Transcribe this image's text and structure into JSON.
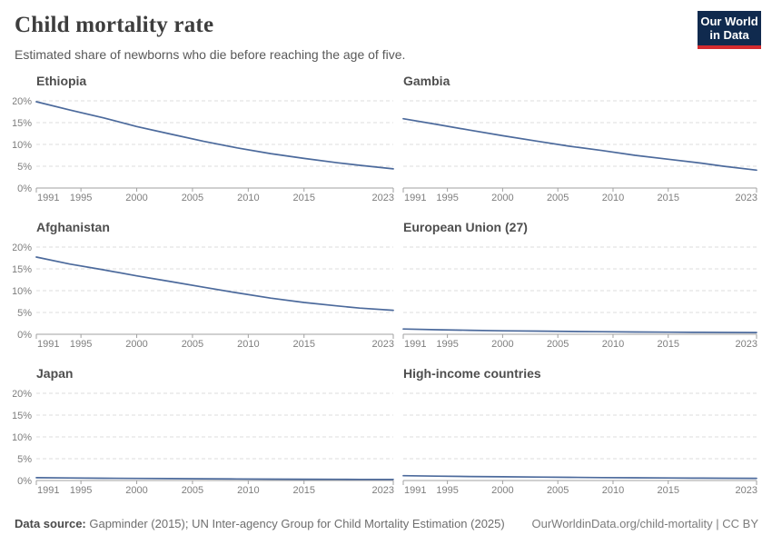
{
  "header": {
    "title": "Child mortality rate",
    "subtitle": "Estimated share of newborns who die before reaching the age of five."
  },
  "logo": {
    "line1": "Our World",
    "line2": "in Data"
  },
  "footer": {
    "source_label": "Data source:",
    "source_text": " Gapminder (2015); UN Inter-agency Group for Child Mortality Estimation (2025)",
    "credit": "OurWorldinData.org/child-mortality | CC BY"
  },
  "colors": {
    "line": "#4C6A9C",
    "logo_bg": "#102a4e",
    "logo_red": "#d42b2f",
    "grid": "#dcdcdc",
    "axis": "#a1a1a1",
    "tick_label": "#7e7e7e"
  },
  "chart_data": [
    {
      "type": "line",
      "title": "Ethiopia",
      "x": [
        1991,
        1994,
        1997,
        2000,
        2003,
        2006,
        2009,
        2012,
        2015,
        2018,
        2020,
        2023
      ],
      "values": [
        19.8,
        17.9,
        16.1,
        14.1,
        12.4,
        10.7,
        9.2,
        7.9,
        6.8,
        5.8,
        5.2,
        4.4
      ],
      "xlim": [
        1991,
        2023
      ],
      "ylim": [
        0,
        20
      ],
      "xticks": [
        1991,
        1995,
        2000,
        2005,
        2010,
        2015,
        2023
      ],
      "yticks": [
        0,
        5,
        10,
        15,
        20
      ],
      "ytick_labels": [
        "0%",
        "5%",
        "10%",
        "15%",
        "20%"
      ],
      "show_y_labels": true,
      "grid": true,
      "ylabel": "",
      "xlabel": ""
    },
    {
      "type": "line",
      "title": "Gambia",
      "x": [
        1991,
        1994,
        1997,
        2000,
        2003,
        2006,
        2009,
        2012,
        2015,
        2018,
        2020,
        2023
      ],
      "values": [
        15.9,
        14.6,
        13.3,
        12.0,
        10.8,
        9.6,
        8.6,
        7.5,
        6.6,
        5.7,
        5.0,
        4.1
      ],
      "xlim": [
        1991,
        2023
      ],
      "ylim": [
        0,
        20
      ],
      "xticks": [
        1991,
        1995,
        2000,
        2005,
        2010,
        2015,
        2023
      ],
      "yticks": [
        0,
        5,
        10,
        15,
        20
      ],
      "ytick_labels": [
        "0%",
        "5%",
        "10%",
        "15%",
        "20%"
      ],
      "show_y_labels": false,
      "grid": true,
      "ylabel": "",
      "xlabel": ""
    },
    {
      "type": "line",
      "title": "Afghanistan",
      "x": [
        1991,
        1994,
        1997,
        2000,
        2003,
        2006,
        2009,
        2012,
        2015,
        2018,
        2020,
        2023
      ],
      "values": [
        17.7,
        16.1,
        14.8,
        13.4,
        12.1,
        10.8,
        9.5,
        8.3,
        7.3,
        6.5,
        6.0,
        5.5
      ],
      "xlim": [
        1991,
        2023
      ],
      "ylim": [
        0,
        20
      ],
      "xticks": [
        1991,
        1995,
        2000,
        2005,
        2010,
        2015,
        2023
      ],
      "yticks": [
        0,
        5,
        10,
        15,
        20
      ],
      "ytick_labels": [
        "0%",
        "5%",
        "10%",
        "15%",
        "20%"
      ],
      "show_y_labels": true,
      "grid": true,
      "ylabel": "",
      "xlabel": ""
    },
    {
      "type": "line",
      "title": "European Union (27)",
      "x": [
        1991,
        1994,
        1997,
        2000,
        2003,
        2006,
        2009,
        2012,
        2015,
        2018,
        2020,
        2023
      ],
      "values": [
        1.2,
        1.05,
        0.92,
        0.8,
        0.72,
        0.64,
        0.58,
        0.52,
        0.48,
        0.44,
        0.42,
        0.4
      ],
      "xlim": [
        1991,
        2023
      ],
      "ylim": [
        0,
        20
      ],
      "xticks": [
        1991,
        1995,
        2000,
        2005,
        2010,
        2015,
        2023
      ],
      "yticks": [
        0,
        5,
        10,
        15,
        20
      ],
      "ytick_labels": [
        "0%",
        "5%",
        "10%",
        "15%",
        "20%"
      ],
      "show_y_labels": false,
      "grid": true,
      "ylabel": "",
      "xlabel": ""
    },
    {
      "type": "line",
      "title": "Japan",
      "x": [
        1991,
        1994,
        1997,
        2000,
        2003,
        2006,
        2009,
        2012,
        2015,
        2018,
        2020,
        2023
      ],
      "values": [
        0.64,
        0.58,
        0.52,
        0.48,
        0.43,
        0.39,
        0.35,
        0.32,
        0.3,
        0.27,
        0.26,
        0.25
      ],
      "xlim": [
        1991,
        2023
      ],
      "ylim": [
        0,
        20
      ],
      "xticks": [
        1991,
        1995,
        2000,
        2005,
        2010,
        2015,
        2023
      ],
      "yticks": [
        0,
        5,
        10,
        15,
        20
      ],
      "ytick_labels": [
        "0%",
        "5%",
        "10%",
        "15%",
        "20%"
      ],
      "show_y_labels": true,
      "grid": true,
      "ylabel": "",
      "xlabel": ""
    },
    {
      "type": "line",
      "title": "High-income countries",
      "x": [
        1991,
        1994,
        1997,
        2000,
        2003,
        2006,
        2009,
        2012,
        2015,
        2018,
        2020,
        2023
      ],
      "values": [
        1.1,
        1.0,
        0.92,
        0.85,
        0.79,
        0.73,
        0.67,
        0.62,
        0.58,
        0.54,
        0.52,
        0.5
      ],
      "xlim": [
        1991,
        2023
      ],
      "ylim": [
        0,
        20
      ],
      "xticks": [
        1991,
        1995,
        2000,
        2005,
        2010,
        2015,
        2023
      ],
      "yticks": [
        0,
        5,
        10,
        15,
        20
      ],
      "ytick_labels": [
        "0%",
        "5%",
        "10%",
        "15%",
        "20%"
      ],
      "show_y_labels": false,
      "grid": true,
      "ylabel": "",
      "xlabel": ""
    }
  ]
}
